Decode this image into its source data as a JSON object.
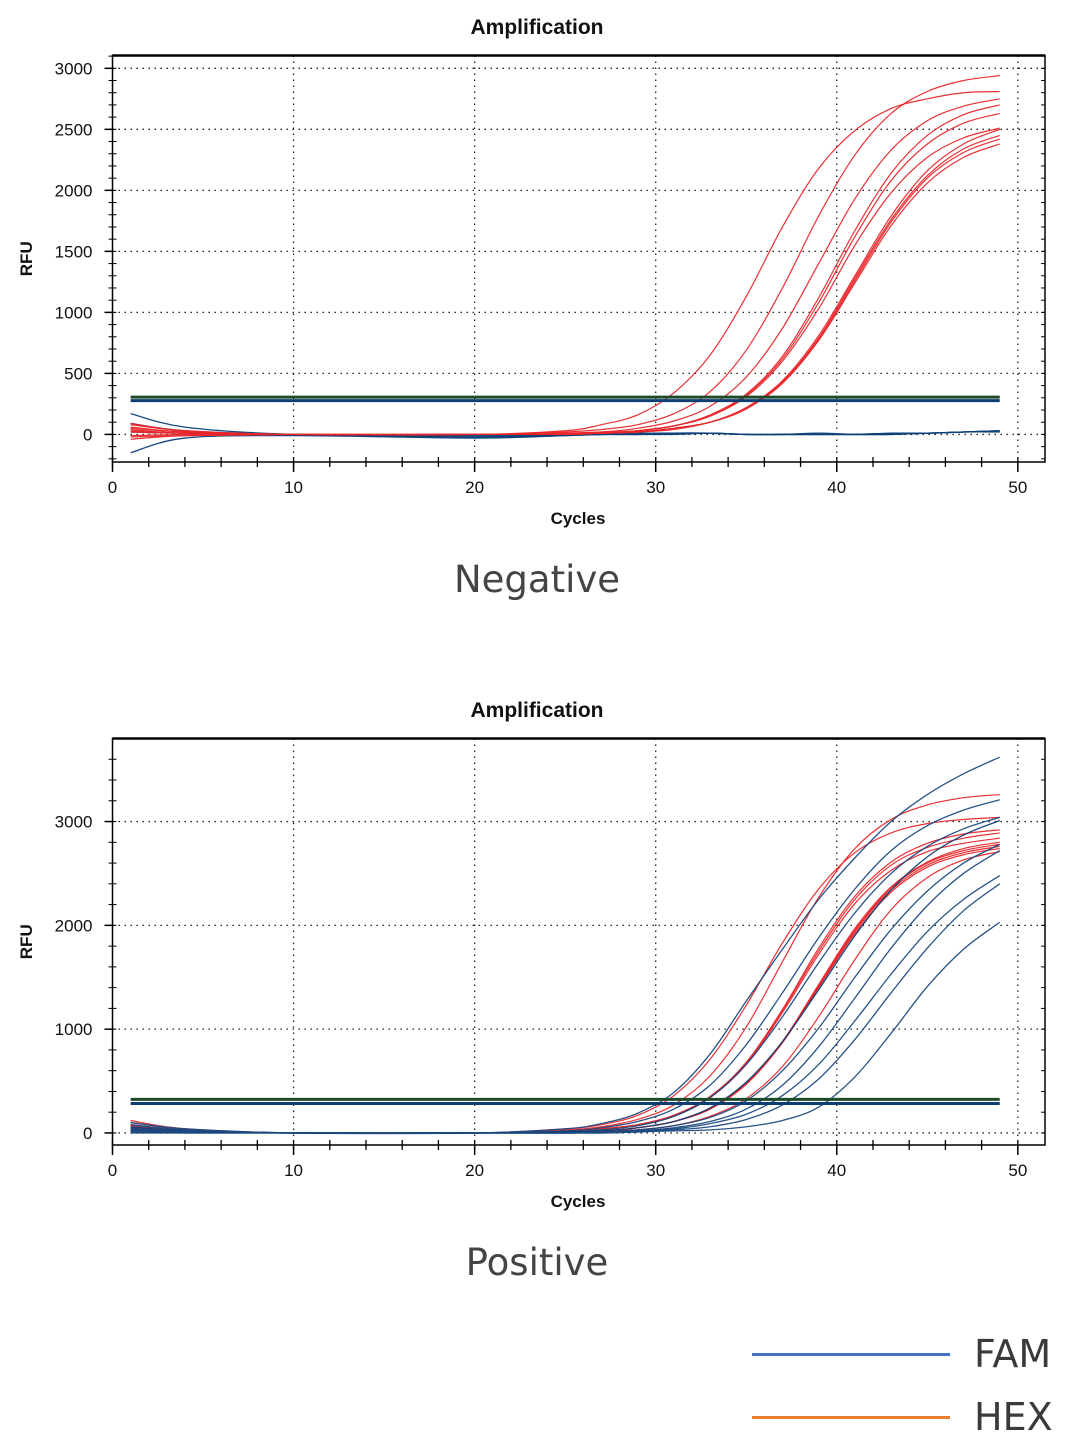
{
  "chart_data": [
    {
      "type": "line",
      "title": "Amplification",
      "xlabel": "Cycles",
      "ylabel": "RFU",
      "caption": "Negative",
      "xlim": [
        0,
        51.5
      ],
      "ylim": [
        -226,
        3105
      ],
      "xticks": [
        0,
        10,
        20,
        30,
        40,
        50
      ],
      "yticks": [
        0,
        500,
        1000,
        1500,
        2000,
        2500,
        3000
      ],
      "grid": true,
      "thresholds": [
        {
          "channel": "HEX",
          "value": 306,
          "color": "#1d4a2a"
        },
        {
          "channel": "FAM",
          "value": 277,
          "color": "#0b3f74"
        }
      ],
      "x": [
        1,
        4,
        10,
        20,
        25,
        27,
        29,
        31,
        33,
        35,
        37,
        39,
        41,
        43,
        45,
        47,
        49
      ],
      "series": [
        {
          "channel": "HEX",
          "color": "#e8262a",
          "values": [
            60,
            20,
            0,
            0,
            30,
            80,
            160,
            340,
            650,
            1130,
            1700,
            2180,
            2490,
            2670,
            2750,
            2800,
            2810
          ]
        },
        {
          "channel": "HEX",
          "color": "#e8262a",
          "values": [
            -20,
            -10,
            0,
            0,
            20,
            40,
            80,
            170,
            350,
            690,
            1200,
            1790,
            2290,
            2630,
            2810,
            2900,
            2940
          ]
        },
        {
          "channel": "HEX",
          "color": "#e8262a",
          "values": [
            30,
            10,
            0,
            0,
            10,
            20,
            50,
            110,
            230,
            470,
            870,
            1400,
            1930,
            2330,
            2570,
            2690,
            2750
          ]
        },
        {
          "channel": "HEX",
          "color": "#e8262a",
          "values": [
            80,
            30,
            0,
            0,
            10,
            20,
            30,
            70,
            160,
            330,
            640,
            1120,
            1670,
            2140,
            2450,
            2620,
            2700
          ]
        },
        {
          "channel": "HEX",
          "color": "#e8262a",
          "values": [
            40,
            10,
            0,
            0,
            10,
            10,
            30,
            70,
            150,
            320,
            620,
            1080,
            1620,
            2080,
            2380,
            2550,
            2630
          ]
        },
        {
          "channel": "HEX",
          "color": "#e8262a",
          "values": [
            -40,
            -10,
            0,
            0,
            10,
            10,
            30,
            70,
            150,
            310,
            600,
            1030,
            1550,
            1980,
            2270,
            2430,
            2510
          ]
        },
        {
          "channel": "HEX",
          "color": "#e8262a",
          "values": [
            20,
            10,
            0,
            0,
            0,
            10,
            20,
            50,
            100,
            220,
            440,
            810,
            1300,
            1790,
            2160,
            2380,
            2500
          ]
        },
        {
          "channel": "HEX",
          "color": "#e8262a",
          "values": [
            90,
            30,
            0,
            0,
            0,
            10,
            20,
            50,
            100,
            210,
            430,
            790,
            1280,
            1760,
            2120,
            2340,
            2450
          ]
        },
        {
          "channel": "HEX",
          "color": "#e8262a",
          "values": [
            -10,
            0,
            0,
            0,
            0,
            10,
            20,
            50,
            100,
            210,
            420,
            780,
            1260,
            1740,
            2100,
            2310,
            2420
          ]
        },
        {
          "channel": "HEX",
          "color": "#e8262a",
          "values": [
            50,
            20,
            0,
            0,
            0,
            10,
            20,
            40,
            100,
            210,
            420,
            770,
            1240,
            1710,
            2060,
            2270,
            2380
          ]
        },
        {
          "channel": "FAM",
          "color": "#0d3f78",
          "values": [
            170,
            60,
            0,
            -20,
            -10,
            0,
            0,
            10,
            10,
            0,
            0,
            10,
            0,
            0,
            10,
            20,
            30
          ]
        },
        {
          "channel": "FAM",
          "color": "#0d3f78",
          "values": [
            -150,
            -30,
            -10,
            -30,
            -10,
            0,
            0,
            0,
            10,
            0,
            0,
            0,
            0,
            10,
            10,
            20,
            20
          ]
        },
        {
          "channel": "FAM",
          "color": "#0d3f78",
          "values": [
            90,
            30,
            0,
            -20,
            0,
            0,
            0,
            10,
            10,
            0,
            0,
            0,
            0,
            0,
            10,
            20,
            30
          ]
        },
        {
          "channel": "FAM",
          "color": "#0d3f78",
          "values": [
            20,
            10,
            0,
            -10,
            0,
            0,
            10,
            10,
            10,
            0,
            0,
            0,
            0,
            10,
            10,
            20,
            30
          ]
        }
      ]
    },
    {
      "type": "line",
      "title": "Amplification",
      "xlabel": "Cycles",
      "ylabel": "RFU",
      "caption": "Positive",
      "xlim": [
        0,
        51.5
      ],
      "ylim": [
        -116,
        3800
      ],
      "xticks": [
        0,
        10,
        20,
        30,
        40,
        50
      ],
      "yticks": [
        0,
        1000,
        2000,
        3000
      ],
      "grid": true,
      "thresholds": [
        {
          "channel": "HEX",
          "value": 323,
          "color": "#1d4a2a"
        },
        {
          "channel": "FAM",
          "value": 284,
          "color": "#0b3f74"
        }
      ],
      "x": [
        1,
        4,
        10,
        20,
        25,
        27,
        29,
        31,
        33,
        35,
        37,
        39,
        41,
        43,
        45,
        47,
        49
      ],
      "series": [
        {
          "channel": "HEX",
          "color": "#e8262a",
          "values": [
            100,
            40,
            0,
            0,
            40,
            80,
            170,
            360,
            710,
            1230,
            1830,
            2350,
            2700,
            2890,
            2980,
            3020,
            3040
          ]
        },
        {
          "channel": "HEX",
          "color": "#e8262a",
          "values": [
            60,
            20,
            0,
            0,
            30,
            60,
            130,
            270,
            550,
            1020,
            1650,
            2270,
            2740,
            3020,
            3160,
            3230,
            3260
          ]
        },
        {
          "channel": "HEX",
          "color": "#e8262a",
          "values": [
            40,
            20,
            0,
            0,
            20,
            40,
            80,
            170,
            350,
            680,
            1190,
            1780,
            2280,
            2610,
            2790,
            2880,
            2920
          ]
        },
        {
          "channel": "HEX",
          "color": "#e8262a",
          "values": [
            80,
            30,
            0,
            0,
            20,
            40,
            80,
            170,
            350,
            670,
            1180,
            1750,
            2250,
            2580,
            2750,
            2840,
            2890
          ]
        },
        {
          "channel": "HEX",
          "color": "#e8262a",
          "values": [
            20,
            10,
            0,
            0,
            20,
            40,
            80,
            160,
            340,
            660,
            1160,
            1720,
            2210,
            2530,
            2710,
            2790,
            2840
          ]
        },
        {
          "channel": "HEX",
          "color": "#e8262a",
          "values": [
            50,
            20,
            0,
            0,
            10,
            20,
            50,
            110,
            240,
            480,
            880,
            1430,
            1970,
            2370,
            2610,
            2740,
            2800
          ]
        },
        {
          "channel": "HEX",
          "color": "#e8262a",
          "values": [
            120,
            40,
            0,
            0,
            10,
            20,
            50,
            110,
            240,
            480,
            880,
            1420,
            1950,
            2360,
            2600,
            2720,
            2780
          ]
        },
        {
          "channel": "HEX",
          "color": "#e8262a",
          "values": [
            30,
            10,
            0,
            0,
            10,
            20,
            50,
            110,
            230,
            470,
            870,
            1410,
            1940,
            2340,
            2580,
            2700,
            2760
          ]
        },
        {
          "channel": "HEX",
          "color": "#e8262a",
          "values": [
            70,
            20,
            0,
            0,
            10,
            20,
            50,
            110,
            230,
            470,
            870,
            1400,
            1920,
            2320,
            2560,
            2680,
            2740
          ]
        },
        {
          "channel": "HEX",
          "color": "#e8262a",
          "values": [
            10,
            0,
            0,
            0,
            10,
            20,
            30,
            70,
            160,
            330,
            640,
            1120,
            1670,
            2150,
            2460,
            2630,
            2710
          ]
        },
        {
          "channel": "FAM",
          "color": "#1b4a82",
          "values": [
            100,
            40,
            0,
            0,
            40,
            90,
            190,
            390,
            760,
            1270,
            1770,
            2250,
            2650,
            3000,
            3260,
            3460,
            3620
          ]
        },
        {
          "channel": "FAM",
          "color": "#1b4a82",
          "values": [
            30,
            10,
            0,
            0,
            20,
            50,
            110,
            230,
            460,
            850,
            1350,
            1880,
            2350,
            2720,
            2960,
            3110,
            3210
          ]
        },
        {
          "channel": "FAM",
          "color": "#1b4a82",
          "values": [
            80,
            30,
            0,
            0,
            10,
            30,
            70,
            160,
            340,
            660,
            1120,
            1640,
            2120,
            2500,
            2760,
            2930,
            3040
          ]
        },
        {
          "channel": "FAM",
          "color": "#0d3f78",
          "values": [
            60,
            20,
            0,
            0,
            10,
            20,
            50,
            110,
            240,
            490,
            880,
            1380,
            1900,
            2340,
            2660,
            2870,
            3010
          ]
        },
        {
          "channel": "FAM",
          "color": "#1b4a82",
          "values": [
            40,
            10,
            0,
            0,
            0,
            10,
            30,
            70,
            150,
            310,
            600,
            1010,
            1500,
            1960,
            2330,
            2600,
            2780
          ]
        },
        {
          "channel": "FAM",
          "color": "#1b4a82",
          "values": [
            20,
            10,
            0,
            0,
            0,
            10,
            20,
            50,
            110,
            230,
            460,
            830,
            1300,
            1780,
            2190,
            2500,
            2720
          ]
        },
        {
          "channel": "FAM",
          "color": "#1b4a82",
          "values": [
            50,
            20,
            0,
            0,
            0,
            10,
            20,
            40,
            90,
            180,
            360,
            660,
            1080,
            1530,
            1940,
            2250,
            2480
          ]
        },
        {
          "channel": "FAM",
          "color": "#1b4a82",
          "values": [
            10,
            0,
            0,
            0,
            0,
            0,
            10,
            30,
            60,
            130,
            270,
            520,
            900,
            1350,
            1780,
            2140,
            2400
          ]
        },
        {
          "channel": "FAM",
          "color": "#1b4a82",
          "values": [
            0,
            0,
            0,
            0,
            0,
            0,
            10,
            20,
            30,
            60,
            120,
            250,
            540,
            960,
            1410,
            1770,
            2030
          ]
        }
      ]
    }
  ],
  "legend": {
    "items": [
      {
        "label": "FAM",
        "color": "#4472c4"
      },
      {
        "label": "HEX",
        "color": "#ed7d31"
      }
    ]
  }
}
